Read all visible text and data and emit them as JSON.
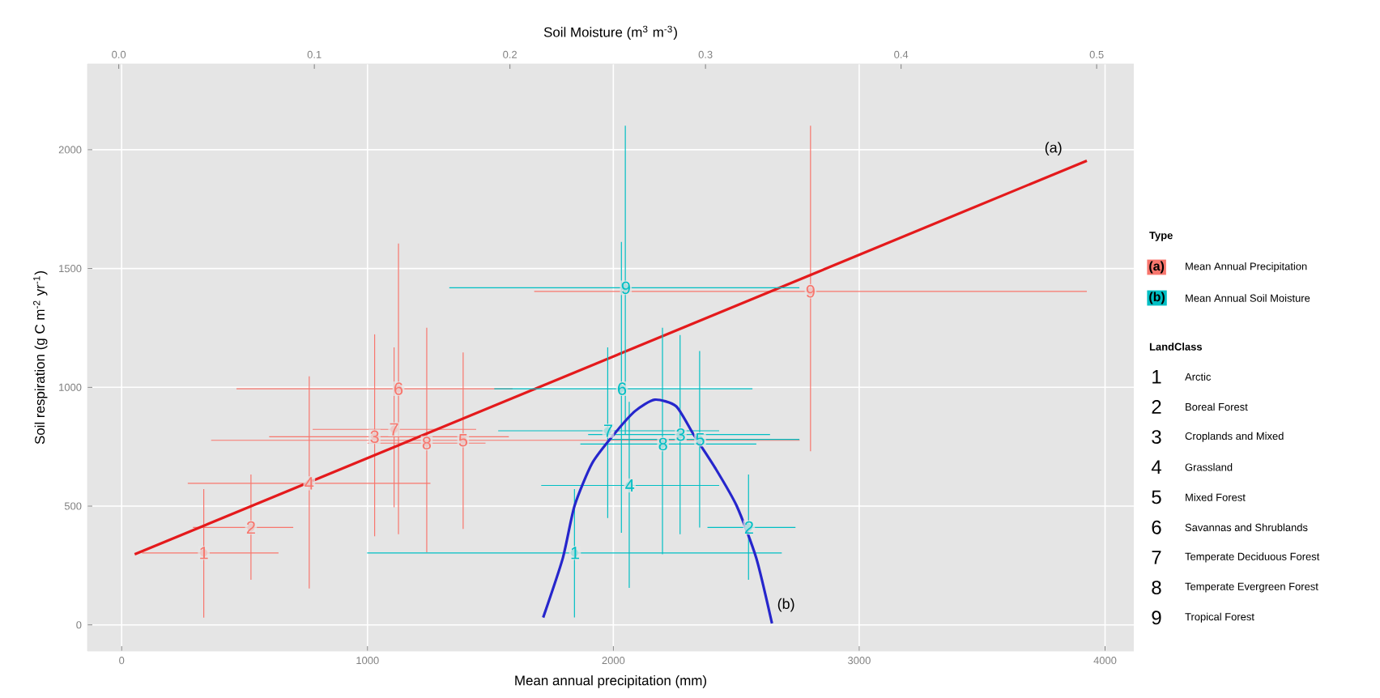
{
  "chart_data": {
    "type": "scatter",
    "xlabel": "Mean annual precipitation (mm)",
    "ylabel": "Soil respiration (g C m$^{-2}$ yr$^{-1}$)",
    "x2label": "Soil Moisture (m$^{3}$ m$^{-3}$)",
    "legend_title": "Type",
    "legend": "right",
    "grid": true,
    "xlim": [
      -139,
      4117
    ],
    "xticks": [
      0,
      1000,
      2000,
      3000,
      4000
    ],
    "x2lim": [
      -0.016,
      0.519
    ],
    "x2ticks": [
      {
        "value": 0,
        "label": "0.0"
      },
      0.1,
      0.2,
      0.3,
      0.4,
      0.5
    ],
    "ylim": [
      -110,
      2361
    ],
    "yticks": [
      0,
      500,
      1000,
      1500,
      2000
    ],
    "series": [
      {
        "name": "Mean Annual Precipitation",
        "color": "#f8766d",
        "x": [
          334,
          526,
          1029,
          763,
          1389,
          1126,
          1108,
          1241,
          2802
        ],
        "values": [
          303,
          410,
          792,
          596,
          777,
          994,
          823,
          765,
          1404
        ],
        "xerrors": [
          [
            83,
            638
          ],
          [
            290,
            698
          ],
          [
            600,
            1575
          ],
          [
            269,
            1256
          ],
          [
            364,
            2758
          ],
          [
            467,
            1590
          ],
          [
            777,
            1442
          ],
          [
            1000,
            1480
          ],
          [
            1678,
            3926
          ]
        ],
        "errors": [
          [
            31,
            572
          ],
          [
            190,
            633
          ],
          [
            373,
            1223
          ],
          [
            153,
            1046
          ],
          [
            404,
            1147
          ],
          [
            382,
            1605
          ],
          [
            495,
            1168
          ],
          [
            306,
            1251
          ],
          [
            731,
            2101
          ]
        ]
      },
      {
        "name": "Mean Annual Soil Moisture",
        "axis": "x2",
        "color": "#00bfc4",
        "x": [
          0.233,
          0.322,
          0.287,
          0.261,
          0.297,
          0.257,
          0.25,
          0.278,
          0.259
        ],
        "values": [
          303,
          410,
          801,
          587,
          781,
          994,
          817,
          761,
          1419
        ],
        "xerrors": [
          [
            0.127,
            0.339
          ],
          [
            0.301,
            0.346
          ],
          [
            0.24,
            0.333
          ],
          [
            0.216,
            0.307
          ],
          [
            0.251,
            0.348
          ],
          [
            0.192,
            0.324
          ],
          [
            0.194,
            0.307
          ],
          [
            0.236,
            0.326
          ],
          [
            0.169,
            0.348
          ]
        ],
        "errors": [
          [
            31,
            572
          ],
          [
            190,
            633
          ],
          [
            382,
            1220
          ],
          [
            156,
            939
          ],
          [
            410,
            1153
          ],
          [
            388,
            1612
          ],
          [
            450,
            1168
          ],
          [
            297,
            1251
          ],
          [
            800,
            2101
          ]
        ]
      },
      {
        "type": "line",
        "color": "#e41a1c",
        "x": [
          53,
          3926
        ],
        "values": [
          297,
          1954
        ]
      },
      {
        "type": "line",
        "axis": "x2",
        "color": "#2626cc",
        "x": [
          0.217,
          0.227,
          0.233,
          0.242,
          0.253,
          0.264,
          0.274,
          0.285,
          0.294,
          0.305,
          0.316,
          0.326,
          0.334
        ],
        "values": [
          31,
          280,
          500,
          680,
          800,
          900,
          948,
          920,
          800,
          660,
          500,
          280,
          6
        ]
      }
    ],
    "annotations": [
      "(a)",
      "(b)",
      "LandClass",
      "Arctic",
      "Boreal Forest",
      "Croplands and Mixed",
      "Grassland",
      "Mixed Forest",
      "Savannas and Shrublands",
      "Temperate Deciduous Forest",
      "Temperate Evergreen Forest",
      "Tropical Forest",
      {
        "text": "1",
        "x": 334,
        "y": 303
      },
      {
        "text": "2",
        "x": 526,
        "y": 410
      },
      {
        "text": "3",
        "x": 1029,
        "y": 792
      },
      {
        "text": "4",
        "x": 763,
        "y": 596
      },
      {
        "text": "5",
        "x": 1389,
        "y": 777
      },
      {
        "text": "6",
        "x": 1126,
        "y": 994
      },
      {
        "text": "7",
        "x": 1108,
        "y": 823
      },
      {
        "text": "8",
        "x": 1241,
        "y": 765
      },
      {
        "text": "9",
        "x": 2802,
        "y": 1404
      },
      {
        "text": "1",
        "x": 1844,
        "y": 303
      },
      {
        "text": "2",
        "x": 2552,
        "y": 410
      },
      {
        "text": "3",
        "x": 2274,
        "y": 801
      },
      {
        "text": "4",
        "x": 2067,
        "y": 587
      },
      {
        "text": "5",
        "x": 2353,
        "y": 781
      },
      {
        "text": "6",
        "x": 2035,
        "y": 994
      },
      {
        "text": "7",
        "x": 1979,
        "y": 817
      },
      {
        "text": "8",
        "x": 2202,
        "y": 761
      },
      {
        "text": "9",
        "x": 2051,
        "y": 1419
      }
    ]
  }
}
